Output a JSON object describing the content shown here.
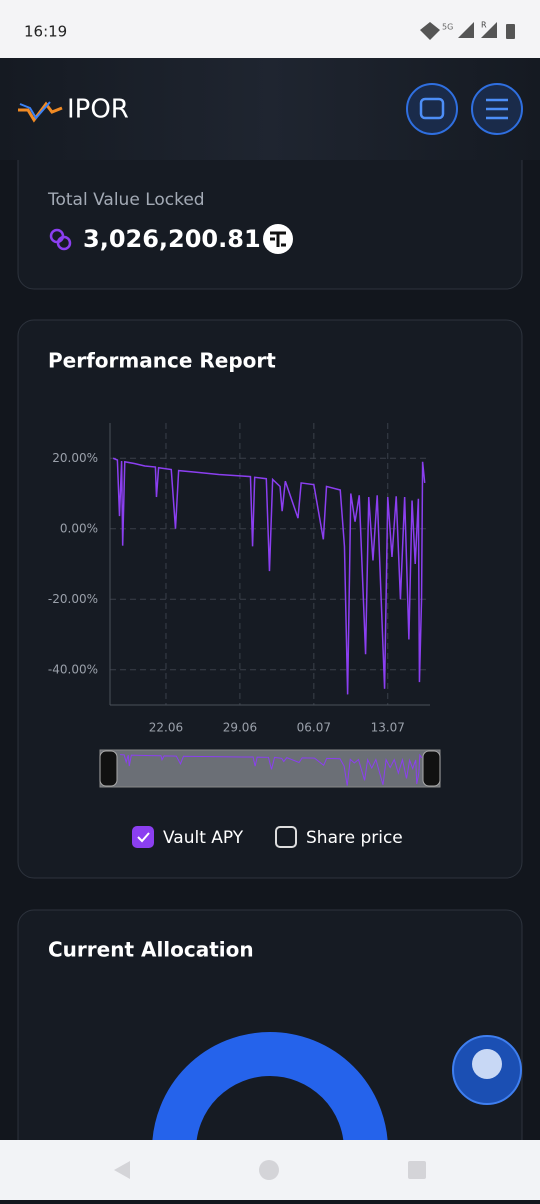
{
  "status_bar": {
    "time": "16:19",
    "network": "5G",
    "roaming": "R"
  },
  "header": {
    "brand": "IPOR"
  },
  "tvl_card": {
    "label": "Total Value Locked",
    "value": "3,026,200.81"
  },
  "performance_card": {
    "title": "Performance Report",
    "chart_data": {
      "type": "line",
      "series": [
        {
          "name": "Vault APY",
          "color": "#8b3ff0",
          "checked": true,
          "x": [
            168.0,
            168.4,
            168.6,
            168.8,
            168.9,
            169.1,
            170,
            171,
            172,
            172.1,
            172.3,
            173.5,
            173.9,
            174.2,
            176,
            178,
            180,
            181,
            181.2,
            181.4,
            182.5,
            182.8,
            183.1,
            183.8,
            184,
            184.3,
            185.5,
            185.8,
            187,
            187.9,
            188.2,
            189.5,
            189.9,
            190.2,
            190.5,
            190.9,
            191.3,
            191.9,
            192.2,
            192.6,
            193,
            193.7,
            194,
            194.4,
            194.8,
            195.2,
            195.6,
            196,
            196.3,
            196.6,
            196.9,
            197,
            197.2,
            197.3,
            197.5
          ],
          "values": [
            20,
            19.5,
            3.6,
            19.2,
            -4.8,
            19,
            18.5,
            17.8,
            17.5,
            9,
            17.3,
            16.8,
            0,
            16.5,
            16,
            15.4,
            15,
            14.8,
            -5,
            14.6,
            14.2,
            -12,
            14,
            12,
            5,
            13.5,
            3,
            13,
            12.5,
            -3,
            12,
            11,
            -5,
            -47,
            10,
            2,
            9.5,
            -35.6,
            9,
            -9,
            9.5,
            -45.4,
            9,
            -8,
            9.2,
            -20,
            9,
            -31.4,
            8,
            -10,
            8.5,
            -43.5,
            -20,
            19,
            13
          ]
        }
      ],
      "xlim": [
        167.7,
        198
      ],
      "xticks": [
        {
          "value": 173,
          "label": "22.06"
        },
        {
          "value": 180,
          "label": "29.06"
        },
        {
          "value": 187,
          "label": "06.07"
        },
        {
          "value": 194,
          "label": "13.07"
        }
      ],
      "ylim": [
        -50,
        30
      ],
      "yticks": [
        {
          "value": 20,
          "label": "20.00%"
        },
        {
          "value": 0,
          "label": "0.00%"
        },
        {
          "value": -20,
          "label": "-20.00%"
        },
        {
          "value": -40,
          "label": "-40.00%"
        }
      ],
      "grid": true
    },
    "extra_toggles": [
      {
        "label": "Share price",
        "checked": false
      }
    ]
  },
  "allocation_card": {
    "title": "Current Allocation"
  }
}
